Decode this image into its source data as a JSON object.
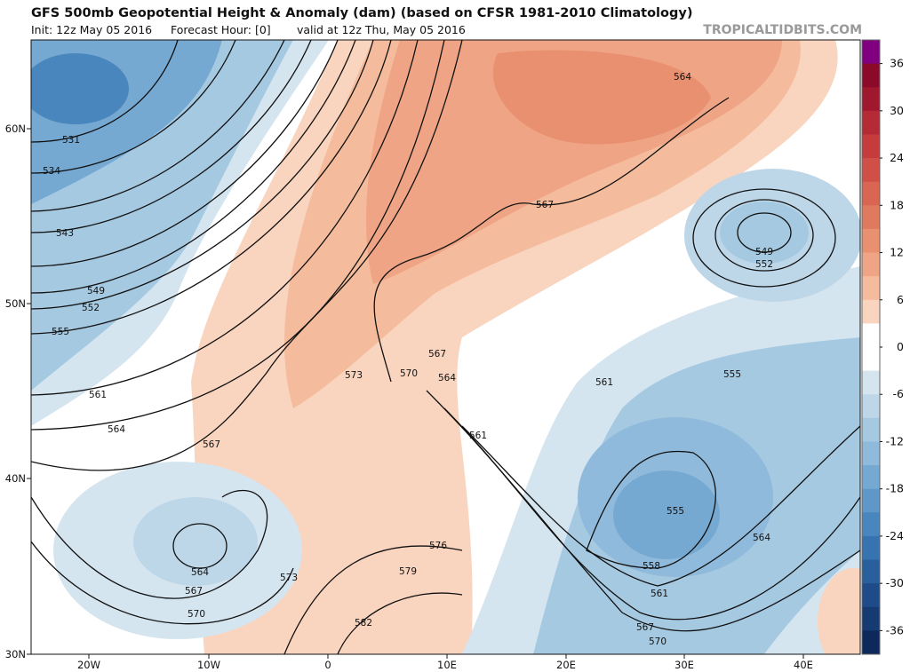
{
  "header": {
    "title": "GFS 500mb Geopotential Height & Anomaly (dam) (based on CFSR 1981-2010 Climatology)",
    "init": "Init: 12z May 05 2016",
    "forecast_hour": "Forecast Hour: [0]",
    "valid": "valid at 12z Thu, May 05 2016",
    "brand": "TROPICALTIDBITS.COM"
  },
  "map": {
    "latitude_labels": [
      "60N",
      "50N",
      "40N",
      "30N"
    ],
    "longitude_labels": [
      "20W",
      "10W",
      "0",
      "10E",
      "20E",
      "30E",
      "40E"
    ],
    "contour_labels": [
      531,
      534,
      543,
      549,
      552,
      555,
      561,
      564,
      567,
      573,
      567,
      570,
      564,
      561,
      567,
      564,
      549,
      552,
      555,
      561,
      555,
      558,
      561,
      564,
      567,
      570,
      570,
      567,
      564,
      573,
      576,
      579,
      582
    ]
  },
  "colorbar": {
    "lim": [
      -39,
      39
    ],
    "ticks": [
      36,
      30,
      24,
      18,
      12,
      6,
      0,
      -6,
      -12,
      -18,
      -24,
      -30,
      -36
    ],
    "colors": [
      "#800080",
      "#8b0a2a",
      "#a0182e",
      "#b42a35",
      "#c63c3c",
      "#d05048",
      "#d96552",
      "#e07a5f",
      "#e8906f",
      "#efa585",
      "#f4bb9c",
      "#f9d4bf",
      "#ffffff",
      "#ffffff",
      "#d5e5f0",
      "#bdd7e9",
      "#a6c9e2",
      "#8fbadb",
      "#76a9d2",
      "#5f98c8",
      "#4986bd",
      "#3773b0",
      "#2a5f9e",
      "#1f4c88",
      "#163a72",
      "#0d285a"
    ]
  }
}
